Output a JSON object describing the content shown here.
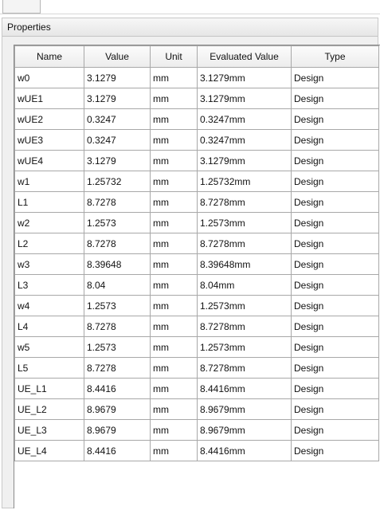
{
  "panel": {
    "title": "Properties"
  },
  "table": {
    "columns": [
      "Name",
      "Value",
      "Unit",
      "Evaluated Value",
      "Type"
    ],
    "rows": [
      [
        "w0",
        "3.1279",
        "mm",
        "3.1279mm",
        "Design"
      ],
      [
        "wUE1",
        "3.1279",
        "mm",
        "3.1279mm",
        "Design"
      ],
      [
        "wUE2",
        "0.3247",
        "mm",
        "0.3247mm",
        "Design"
      ],
      [
        "wUE3",
        "0.3247",
        "mm",
        "0.3247mm",
        "Design"
      ],
      [
        "wUE4",
        "3.1279",
        "mm",
        "3.1279mm",
        "Design"
      ],
      [
        "w1",
        "1.25732",
        "mm",
        "1.25732mm",
        "Design"
      ],
      [
        "L1",
        "8.7278",
        "mm",
        "8.7278mm",
        "Design"
      ],
      [
        "w2",
        "1.2573",
        "mm",
        "1.2573mm",
        "Design"
      ],
      [
        "L2",
        "8.7278",
        "mm",
        "8.7278mm",
        "Design"
      ],
      [
        "w3",
        "8.39648",
        "mm",
        "8.39648mm",
        "Design"
      ],
      [
        "L3",
        "8.04",
        "mm",
        "8.04mm",
        "Design"
      ],
      [
        "w4",
        "1.2573",
        "mm",
        "1.2573mm",
        "Design"
      ],
      [
        "L4",
        "8.7278",
        "mm",
        "8.7278mm",
        "Design"
      ],
      [
        "w5",
        "1.2573",
        "mm",
        "1.2573mm",
        "Design"
      ],
      [
        "L5",
        "8.7278",
        "mm",
        "8.7278mm",
        "Design"
      ],
      [
        "UE_L1",
        "8.4416",
        "mm",
        "8.4416mm",
        "Design"
      ],
      [
        "UE_L2",
        "8.9679",
        "mm",
        "8.9679mm",
        "Design"
      ],
      [
        "UE_L3",
        "8.9679",
        "mm",
        "8.9679mm",
        "Design"
      ],
      [
        "UE_L4",
        "8.4416",
        "mm",
        "8.4416mm",
        "Design"
      ]
    ]
  }
}
